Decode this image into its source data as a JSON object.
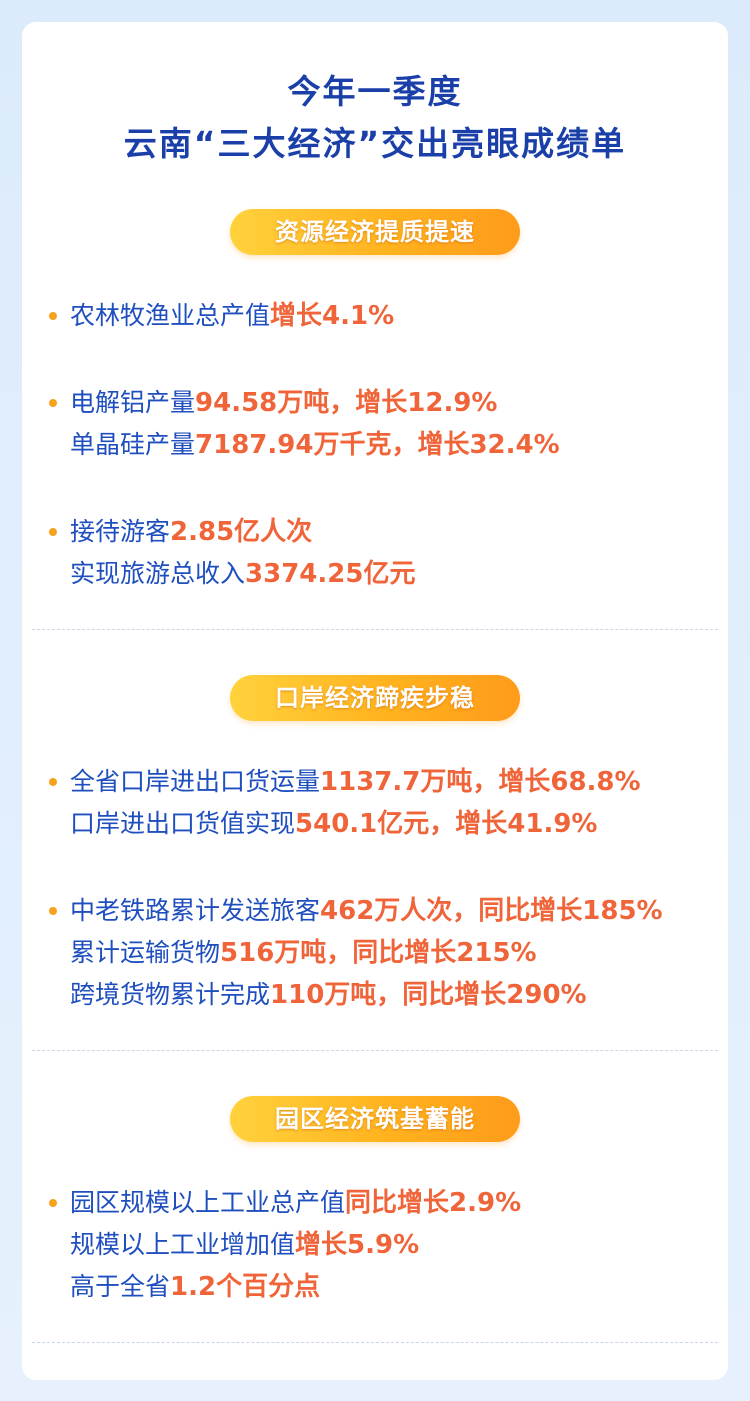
{
  "title": [
    "今年一季度",
    "云南“三大经济”交出亮眼成绩单"
  ],
  "sections": [
    {
      "heading": "资源经济提质提速",
      "groups": [
        [
          {
            "text": "农林牧渔业总产值",
            "highlight": "增长4.1%"
          }
        ],
        [
          {
            "text": "电解铝产量",
            "highlight": "94.58万吨，增长12.9%"
          },
          {
            "text": "单晶硅产量",
            "highlight": "7187.94万千克，增长32.4%"
          }
        ],
        [
          {
            "text": "接待游客",
            "highlight": "2.85亿人次"
          },
          {
            "text": "实现旅游总收入",
            "highlight": "3374.25亿元"
          }
        ]
      ]
    },
    {
      "heading": "口岸经济蹄疾步稳",
      "groups": [
        [
          {
            "text": "全省口岸进出口货运量",
            "highlight": "1137.7万吨，增长68.8%"
          },
          {
            "text": "口岸进出口货值实现",
            "highlight": "540.1亿元，增长41.9%"
          }
        ],
        [
          {
            "text": "中老铁路累计发送旅客",
            "highlight": "462万人次，同比增长185%"
          },
          {
            "text": "累计运输货物",
            "highlight": "516万吨，同比增长215%"
          },
          {
            "text": "跨境货物累计完成",
            "highlight": "110万吨，同比增长290%"
          }
        ]
      ]
    },
    {
      "heading": "园区经济筑基蓄能",
      "groups": [
        [
          {
            "text": "园区规模以上工业总产值",
            "highlight": "同比增长2.9%"
          },
          {
            "text": "规模以上工业增加值",
            "highlight": "增长5.9%"
          },
          {
            "text": "高于全省",
            "highlight": "1.2个百分点"
          }
        ]
      ]
    }
  ]
}
